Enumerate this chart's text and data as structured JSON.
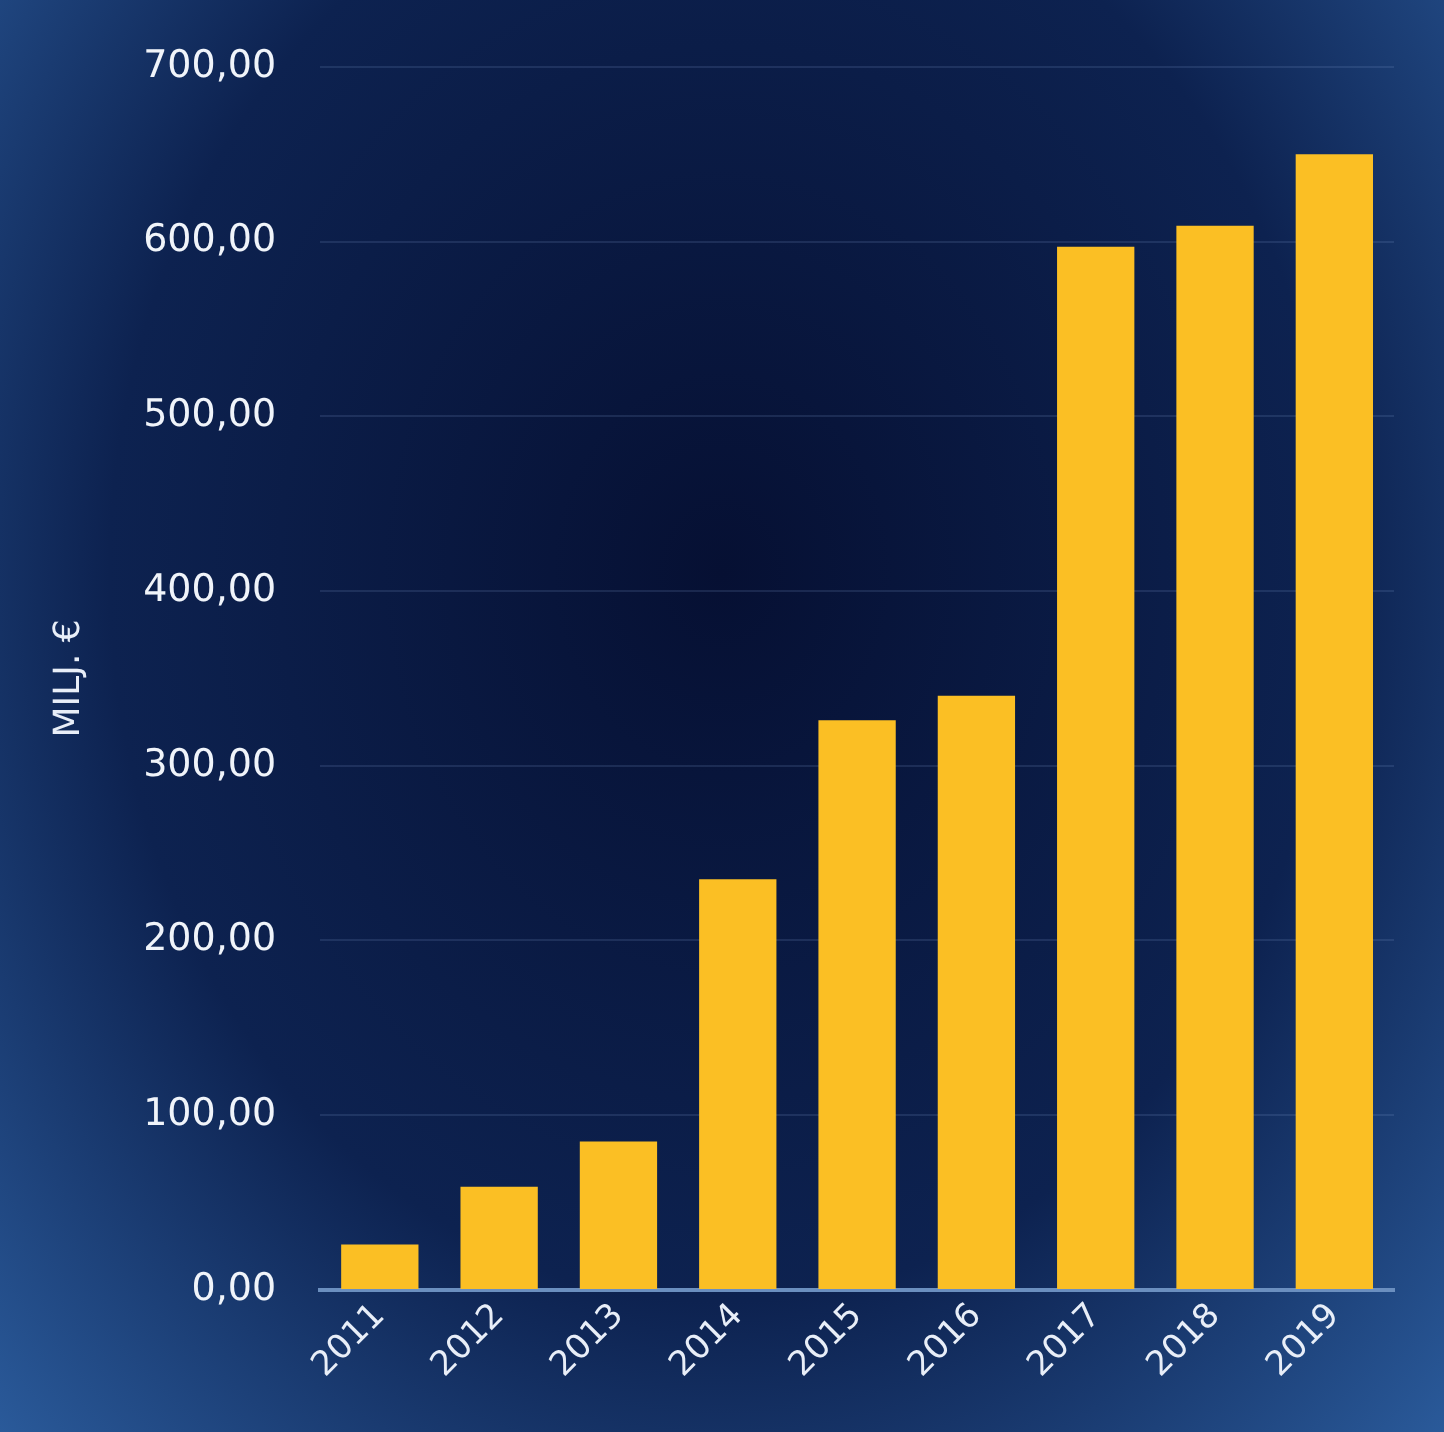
{
  "chart_data": {
    "type": "bar",
    "ylabel": "MILJ. €",
    "categories": [
      "2011",
      "2012",
      "2013",
      "2014",
      "2015",
      "2016",
      "2017",
      "2018",
      "2019"
    ],
    "values": [
      26,
      59,
      85,
      235,
      326,
      340,
      597,
      609,
      650
    ],
    "color": "#fbbf24",
    "ylim": [
      0,
      700
    ],
    "yticks": [
      {
        "value": 0,
        "label": "0,00"
      },
      {
        "value": 100,
        "label": "100,00"
      },
      {
        "value": 200,
        "label": "200,00"
      },
      {
        "value": 300,
        "label": "300,00"
      },
      {
        "value": 400,
        "label": "400,00"
      },
      {
        "value": 500,
        "label": "500,00"
      },
      {
        "value": 600,
        "label": "600,00"
      },
      {
        "value": 700,
        "label": "700,00"
      }
    ],
    "grid": "y"
  }
}
